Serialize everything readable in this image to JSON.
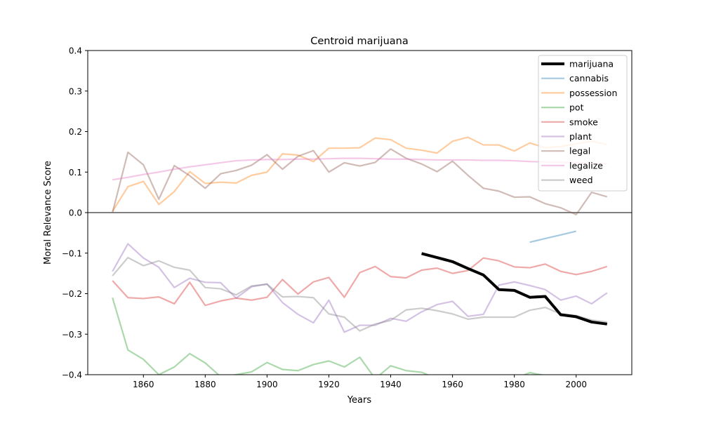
{
  "chart_data": {
    "type": "line",
    "title": "Centroid marijuana",
    "xlabel": "Years",
    "ylabel": "Moral Relevance Score",
    "xlim": [
      1842,
      2018
    ],
    "ylim": [
      -0.4,
      0.4
    ],
    "xticks": [
      1860,
      1880,
      1900,
      1920,
      1940,
      1960,
      1980,
      2000
    ],
    "yticks": [
      -0.4,
      -0.3,
      -0.2,
      -0.1,
      0.0,
      0.1,
      0.2,
      0.3,
      0.4
    ],
    "ytick_labels": [
      "−0.4",
      "−0.3",
      "−0.2",
      "−0.1",
      "0.0",
      "0.1",
      "0.2",
      "0.3",
      "0.4"
    ],
    "zero_line": true,
    "grid": false,
    "legend_position": "top-right",
    "series": [
      {
        "name": "marijuana",
        "color": "#000000",
        "width": 4,
        "opacity": 1,
        "x": [
          1950,
          1955,
          1960,
          1965,
          1970,
          1975,
          1980,
          1985,
          1990,
          1995,
          2000,
          2005,
          2010
        ],
        "y": [
          -0.101,
          -0.111,
          -0.121,
          -0.138,
          -0.154,
          -0.19,
          -0.192,
          -0.209,
          -0.207,
          -0.252,
          -0.257,
          -0.27,
          -0.275
        ]
      },
      {
        "name": "cannabis",
        "color": "#1f77b4",
        "width": 2.2,
        "opacity": 0.4,
        "x": [
          1985,
          1990,
          1995,
          2000
        ],
        "y": [
          -0.073,
          -0.064,
          -0.055,
          -0.046
        ]
      },
      {
        "name": "possession",
        "color": "#ff7f0e",
        "width": 2.2,
        "opacity": 0.4,
        "x": [
          1850,
          1855,
          1860,
          1865,
          1870,
          1875,
          1880,
          1885,
          1890,
          1895,
          1900,
          1905,
          1910,
          1915,
          1920,
          1925,
          1930,
          1935,
          1940,
          1945,
          1950,
          1955,
          1960,
          1965,
          1970,
          1975,
          1980,
          1985,
          1990,
          1995,
          2000,
          2005,
          2010
        ],
        "y": [
          0.003,
          0.064,
          0.077,
          0.02,
          0.052,
          0.101,
          0.072,
          0.075,
          0.073,
          0.092,
          0.1,
          0.145,
          0.142,
          0.126,
          0.159,
          0.159,
          0.16,
          0.184,
          0.18,
          0.159,
          0.154,
          0.147,
          0.176,
          0.186,
          0.167,
          0.167,
          0.152,
          0.172,
          0.16,
          0.163,
          0.17,
          0.176,
          0.168
        ]
      },
      {
        "name": "pot",
        "color": "#2ca02c",
        "width": 2.2,
        "opacity": 0.4,
        "x": [
          1850,
          1855,
          1860,
          1865,
          1870,
          1875,
          1880,
          1885,
          1890,
          1895,
          1900,
          1905,
          1910,
          1915,
          1920,
          1925,
          1930,
          1935,
          1940,
          1945,
          1950,
          1955,
          1960,
          1965,
          1970,
          1975,
          1980,
          1985,
          1990
        ],
        "y": [
          -0.21,
          -0.339,
          -0.362,
          -0.4,
          -0.381,
          -0.348,
          -0.371,
          -0.405,
          -0.4,
          -0.393,
          -0.37,
          -0.387,
          -0.39,
          -0.375,
          -0.366,
          -0.381,
          -0.357,
          -0.41,
          -0.378,
          -0.39,
          -0.394,
          -0.41,
          -0.42,
          -0.43,
          -0.43,
          -0.43,
          -0.41,
          -0.395,
          -0.402
        ]
      },
      {
        "name": "smoke",
        "color": "#d62728",
        "width": 2.2,
        "opacity": 0.4,
        "x": [
          1850,
          1855,
          1860,
          1865,
          1870,
          1875,
          1880,
          1885,
          1890,
          1895,
          1900,
          1905,
          1910,
          1915,
          1920,
          1925,
          1930,
          1935,
          1940,
          1945,
          1950,
          1955,
          1960,
          1965,
          1970,
          1975,
          1980,
          1985,
          1990,
          1995,
          2000,
          2005,
          2010
        ],
        "y": [
          -0.168,
          -0.21,
          -0.212,
          -0.208,
          -0.225,
          -0.172,
          -0.229,
          -0.218,
          -0.211,
          -0.216,
          -0.209,
          -0.165,
          -0.201,
          -0.171,
          -0.16,
          -0.209,
          -0.148,
          -0.133,
          -0.158,
          -0.161,
          -0.142,
          -0.137,
          -0.15,
          -0.143,
          -0.112,
          -0.119,
          -0.134,
          -0.136,
          -0.127,
          -0.145,
          -0.153,
          -0.145,
          -0.133
        ]
      },
      {
        "name": "plant",
        "color": "#9467bd",
        "width": 2.2,
        "opacity": 0.4,
        "x": [
          1850,
          1855,
          1860,
          1865,
          1870,
          1875,
          1880,
          1885,
          1890,
          1895,
          1900,
          1905,
          1910,
          1915,
          1920,
          1925,
          1930,
          1935,
          1940,
          1945,
          1950,
          1955,
          1960,
          1965,
          1970,
          1975,
          1980,
          1985,
          1990,
          1995,
          2000,
          2005,
          2010
        ],
        "y": [
          -0.145,
          -0.077,
          -0.112,
          -0.135,
          -0.185,
          -0.162,
          -0.172,
          -0.173,
          -0.211,
          -0.183,
          -0.176,
          -0.222,
          -0.251,
          -0.272,
          -0.216,
          -0.295,
          -0.278,
          -0.278,
          -0.261,
          -0.268,
          -0.245,
          -0.227,
          -0.219,
          -0.256,
          -0.251,
          -0.179,
          -0.171,
          -0.18,
          -0.19,
          -0.216,
          -0.206,
          -0.225,
          -0.198
        ]
      },
      {
        "name": "legal",
        "color": "#8c564b",
        "width": 2.2,
        "opacity": 0.4,
        "x": [
          1850,
          1855,
          1860,
          1865,
          1870,
          1875,
          1880,
          1885,
          1890,
          1895,
          1900,
          1905,
          1910,
          1915,
          1920,
          1925,
          1930,
          1935,
          1940,
          1945,
          1950,
          1955,
          1960,
          1965,
          1970,
          1975,
          1980,
          1985,
          1990,
          1995,
          2000,
          2005,
          2010
        ],
        "y": [
          0.0,
          0.149,
          0.118,
          0.033,
          0.116,
          0.091,
          0.06,
          0.096,
          0.104,
          0.117,
          0.143,
          0.107,
          0.139,
          0.153,
          0.1,
          0.123,
          0.115,
          0.124,
          0.157,
          0.134,
          0.12,
          0.101,
          0.127,
          0.092,
          0.06,
          0.053,
          0.038,
          0.039,
          0.022,
          0.012,
          -0.005,
          0.05,
          0.039
        ]
      },
      {
        "name": "legalize",
        "color": "#e377c2",
        "width": 2.2,
        "opacity": 0.4,
        "x": [
          1850,
          1855,
          1860,
          1865,
          1870,
          1875,
          1880,
          1885,
          1890,
          1895,
          1900,
          1905,
          1910,
          1915,
          1920,
          1925,
          1930,
          1935,
          1940,
          1945,
          1950,
          1955,
          1960,
          1965,
          1970,
          1975,
          1980,
          1985,
          1990,
          1995,
          2000,
          2005,
          2010
        ],
        "y": [
          0.081,
          0.087,
          0.094,
          0.1,
          0.107,
          0.113,
          0.118,
          0.123,
          0.128,
          0.13,
          0.131,
          0.131,
          0.132,
          0.132,
          0.133,
          0.134,
          0.134,
          0.133,
          0.132,
          0.132,
          0.131,
          0.13,
          0.13,
          0.13,
          0.129,
          0.129,
          0.128,
          0.126,
          0.125,
          0.124,
          0.123,
          0.122,
          0.121
        ]
      },
      {
        "name": "weed",
        "color": "#7f7f7f",
        "width": 2.2,
        "opacity": 0.4,
        "x": [
          1850,
          1855,
          1860,
          1865,
          1870,
          1875,
          1880,
          1885,
          1890,
          1895,
          1900,
          1905,
          1910,
          1915,
          1920,
          1925,
          1930,
          1935,
          1940,
          1945,
          1950,
          1955,
          1960,
          1965,
          1970,
          1975,
          1980,
          1985,
          1990,
          1995,
          2000,
          2005,
          2010
        ],
        "y": [
          -0.156,
          -0.111,
          -0.131,
          -0.119,
          -0.135,
          -0.142,
          -0.185,
          -0.188,
          -0.203,
          -0.181,
          -0.177,
          -0.208,
          -0.207,
          -0.21,
          -0.25,
          -0.258,
          -0.292,
          -0.275,
          -0.266,
          -0.24,
          -0.236,
          -0.242,
          -0.25,
          -0.263,
          -0.258,
          -0.258,
          -0.258,
          -0.241,
          -0.234,
          -0.25,
          -0.254,
          -0.265,
          -0.27
        ]
      }
    ]
  }
}
